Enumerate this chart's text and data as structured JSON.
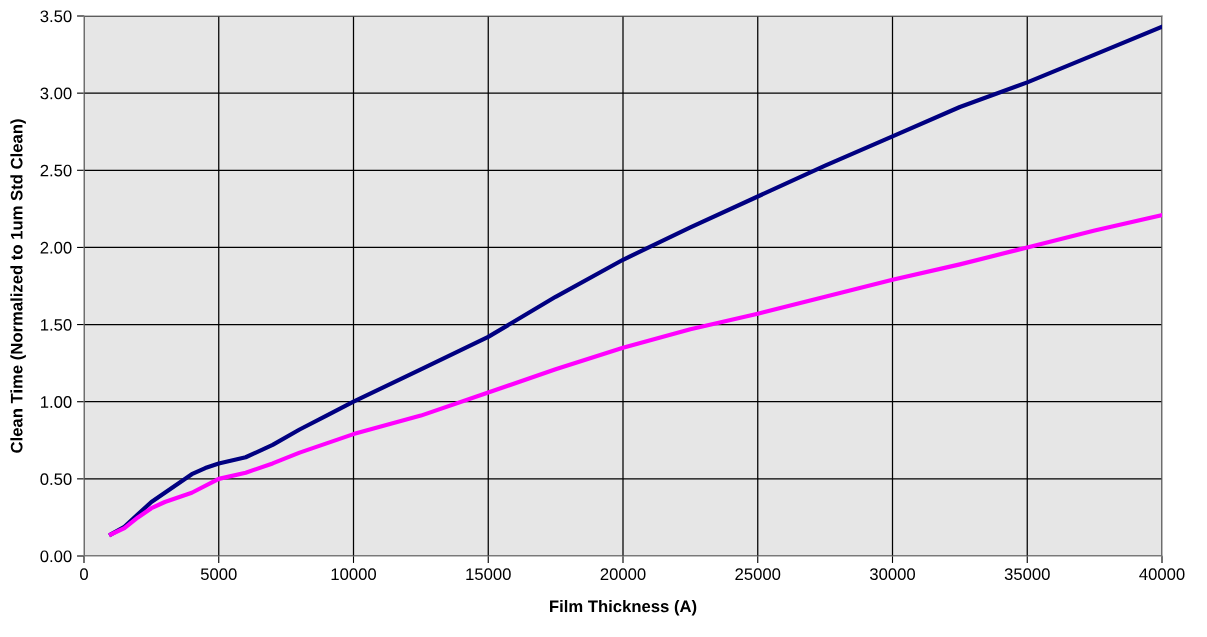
{
  "chart_data": {
    "type": "line",
    "xlabel": "Film Thickness (A)",
    "ylabel": "Clean Time (Normalized to 1um Std Clean)",
    "xlim": [
      0,
      40000
    ],
    "xticks": [
      0,
      5000,
      10000,
      15000,
      20000,
      25000,
      30000,
      35000,
      40000
    ],
    "ylim": [
      0,
      3.5
    ],
    "yticks": [
      {
        "value": 0,
        "label": "0.00"
      },
      {
        "value": 0.5,
        "label": "0.50"
      },
      {
        "value": 1,
        "label": "1.00"
      },
      {
        "value": 1.5,
        "label": "1.50"
      },
      {
        "value": 2,
        "label": "2.00"
      },
      {
        "value": 2.5,
        "label": "2.50"
      },
      {
        "value": 3,
        "label": "3.00"
      },
      {
        "value": 3.5,
        "label": "3.50"
      }
    ],
    "grid": true,
    "marker": "none",
    "line_style": "solid",
    "series": [
      {
        "color": "#000080",
        "x": [
          1000,
          1500,
          2000,
          2500,
          3000,
          3500,
          4000,
          4500,
          5000,
          6000,
          7000,
          8000,
          9000,
          10000,
          12500,
          15000,
          17500,
          20000,
          22500,
          25000,
          27500,
          30000,
          32500,
          35000,
          37500,
          40000
        ],
        "values": [
          0.14,
          0.19,
          0.27,
          0.35,
          0.41,
          0.47,
          0.53,
          0.57,
          0.6,
          0.64,
          0.72,
          0.82,
          0.91,
          1.0,
          1.21,
          1.42,
          1.68,
          1.92,
          2.13,
          2.33,
          2.53,
          2.72,
          2.91,
          3.07,
          3.25,
          3.43
        ]
      },
      {
        "color": "#ff00ff",
        "x": [
          1000,
          1500,
          2000,
          2500,
          3000,
          4000,
          5000,
          6000,
          7000,
          8000,
          9000,
          10000,
          12500,
          15000,
          17500,
          20000,
          22500,
          25000,
          27500,
          30000,
          32500,
          35000,
          37500,
          40000
        ],
        "values": [
          0.14,
          0.18,
          0.25,
          0.31,
          0.35,
          0.41,
          0.5,
          0.54,
          0.6,
          0.67,
          0.73,
          0.79,
          0.91,
          1.06,
          1.21,
          1.35,
          1.47,
          1.57,
          1.68,
          1.79,
          1.89,
          2.0,
          2.11,
          2.21
        ]
      }
    ]
  }
}
